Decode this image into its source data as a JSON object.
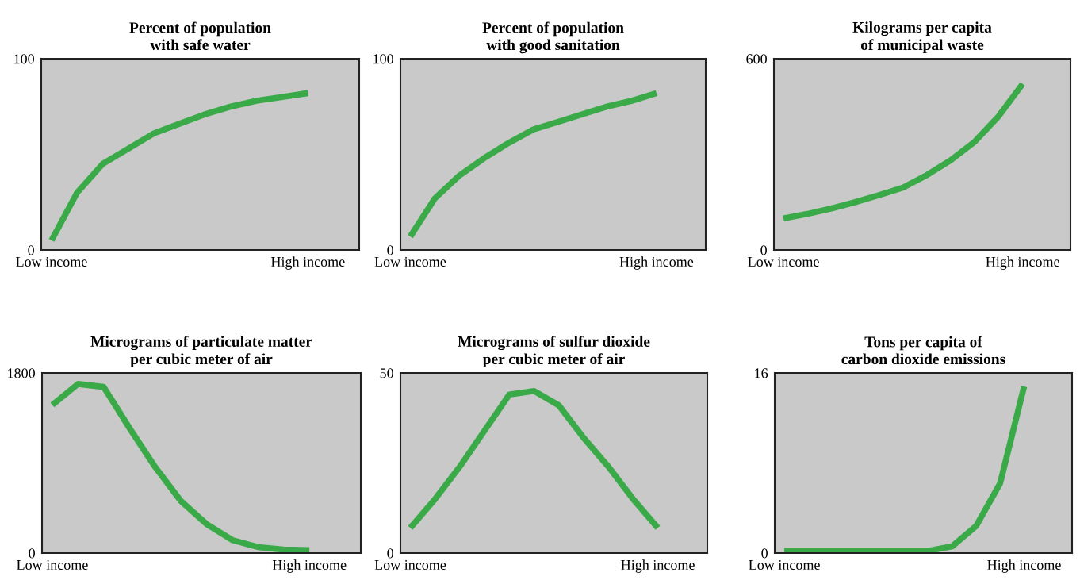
{
  "chart_data": [
    {
      "type": "line",
      "title": "Percent of population\nwith safe water",
      "color": "#3aaa48",
      "categories": [
        "Low income",
        null,
        null,
        null,
        null,
        null,
        null,
        null,
        null,
        null,
        "High income"
      ],
      "values": [
        5,
        30,
        45,
        53,
        61,
        66,
        71,
        75,
        78,
        80,
        82
      ],
      "ylim": [
        0,
        100
      ],
      "yticks": [
        0,
        100
      ]
    },
    {
      "type": "line",
      "title": "Percent of population\nwith good sanitation",
      "color": "#3aaa48",
      "categories": [
        "Low income",
        null,
        null,
        null,
        null,
        null,
        null,
        null,
        null,
        null,
        "High income"
      ],
      "values": [
        7,
        27,
        39,
        48,
        56,
        63,
        67,
        71,
        75,
        78,
        82
      ],
      "ylim": [
        0,
        100
      ],
      "yticks": [
        0,
        100
      ]
    },
    {
      "type": "line",
      "title": "Kilograms per capita\nof municipal waste",
      "color": "#3aaa48",
      "categories": [
        "Low income",
        null,
        null,
        null,
        null,
        null,
        null,
        null,
        null,
        null,
        "High income"
      ],
      "values": [
        99,
        113,
        130,
        150,
        172,
        196,
        235,
        282,
        340,
        420,
        521
      ],
      "ylim": [
        0,
        600
      ],
      "yticks": [
        0,
        600
      ]
    },
    {
      "type": "line",
      "title": "Micrograms of particulate matter\nper cubic meter of air",
      "color": "#3aaa48",
      "categories": [
        "Low income",
        null,
        null,
        null,
        null,
        null,
        null,
        null,
        null,
        null,
        "High income"
      ],
      "values": [
        1480,
        1690,
        1660,
        1250,
        860,
        520,
        290,
        130,
        60,
        35,
        30
      ],
      "ylim": [
        0,
        1800
      ],
      "yticks": [
        0,
        1800
      ]
    },
    {
      "type": "line",
      "title": "Micrograms of sulfur dioxide\nper cubic meter of air",
      "color": "#3aaa48",
      "categories": [
        "Low income",
        null,
        null,
        null,
        null,
        null,
        null,
        null,
        null,
        null,
        "High income"
      ],
      "values": [
        7,
        15,
        24,
        34,
        44,
        45,
        41,
        32,
        24,
        15,
        7
      ],
      "ylim": [
        0,
        50
      ],
      "yticks": [
        0,
        50
      ]
    },
    {
      "type": "line",
      "title": "Tons per capita of\ncarbon dioxide emissions",
      "color": "#3aaa48",
      "categories": [
        "Low income",
        null,
        null,
        null,
        null,
        null,
        null,
        null,
        null,
        null,
        "High income"
      ],
      "values": [
        0.2,
        0.2,
        0.2,
        0.2,
        0.2,
        0.2,
        0.2,
        0.6,
        2.4,
        6.2,
        14.8
      ],
      "ylim": [
        0,
        16
      ],
      "yticks": [
        0,
        16
      ]
    }
  ]
}
